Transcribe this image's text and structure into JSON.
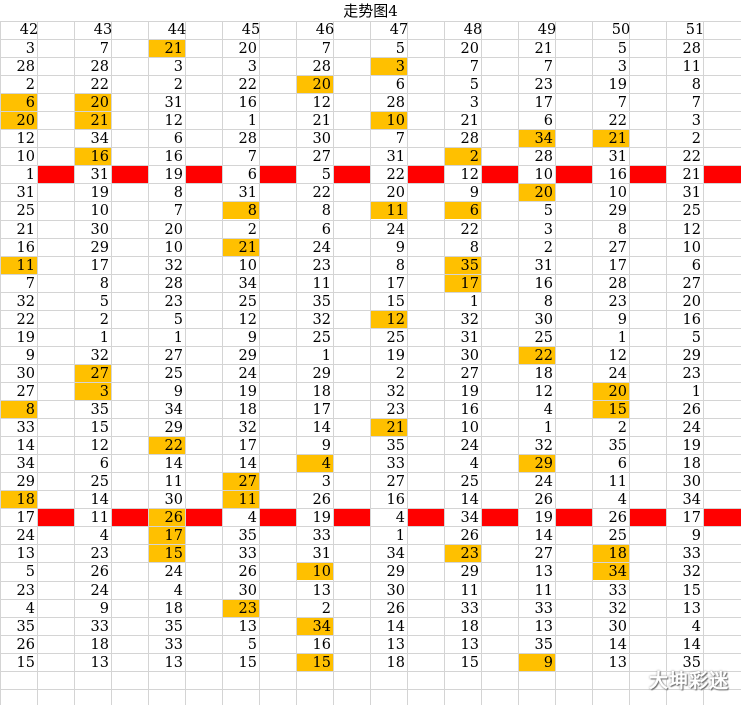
{
  "title": "走势图4",
  "columns": [
    "42",
    "43",
    "44",
    "45",
    "46",
    "47",
    "48",
    "49",
    "50",
    "51"
  ],
  "rows": [
    [
      "3",
      "7",
      "21",
      "20",
      "7",
      "5",
      "20",
      "21",
      "5",
      "28"
    ],
    [
      "28",
      "28",
      "3",
      "3",
      "28",
      "3",
      "7",
      "7",
      "3",
      "11"
    ],
    [
      "2",
      "22",
      "2",
      "22",
      "20",
      "6",
      "5",
      "23",
      "19",
      "8"
    ],
    [
      "6",
      "20",
      "31",
      "16",
      "12",
      "28",
      "3",
      "17",
      "7",
      "7"
    ],
    [
      "20",
      "21",
      "12",
      "1",
      "21",
      "10",
      "21",
      "6",
      "22",
      "3"
    ],
    [
      "12",
      "34",
      "6",
      "28",
      "30",
      "7",
      "28",
      "34",
      "21",
      "2"
    ],
    [
      "10",
      "16",
      "16",
      "7",
      "27",
      "31",
      "2",
      "28",
      "31",
      "22"
    ],
    [
      "1",
      "31",
      "19",
      "6",
      "5",
      "22",
      "12",
      "10",
      "16",
      "21"
    ],
    [
      "31",
      "19",
      "8",
      "31",
      "22",
      "20",
      "9",
      "20",
      "10",
      "31"
    ],
    [
      "25",
      "10",
      "7",
      "8",
      "8",
      "11",
      "6",
      "5",
      "29",
      "25"
    ],
    [
      "21",
      "30",
      "20",
      "2",
      "6",
      "24",
      "22",
      "3",
      "8",
      "12"
    ],
    [
      "16",
      "29",
      "10",
      "21",
      "24",
      "9",
      "8",
      "2",
      "27",
      "10"
    ],
    [
      "11",
      "17",
      "32",
      "10",
      "23",
      "8",
      "35",
      "31",
      "17",
      "6"
    ],
    [
      "7",
      "8",
      "28",
      "34",
      "11",
      "17",
      "17",
      "16",
      "28",
      "27"
    ],
    [
      "32",
      "5",
      "23",
      "25",
      "35",
      "15",
      "1",
      "8",
      "23",
      "20"
    ],
    [
      "22",
      "2",
      "5",
      "12",
      "32",
      "12",
      "32",
      "30",
      "9",
      "16"
    ],
    [
      "19",
      "1",
      "1",
      "9",
      "25",
      "25",
      "31",
      "25",
      "1",
      "5"
    ],
    [
      "9",
      "32",
      "27",
      "29",
      "1",
      "19",
      "30",
      "22",
      "12",
      "29"
    ],
    [
      "30",
      "27",
      "25",
      "24",
      "29",
      "2",
      "27",
      "18",
      "24",
      "23"
    ],
    [
      "27",
      "3",
      "9",
      "19",
      "18",
      "32",
      "19",
      "12",
      "20",
      "1"
    ],
    [
      "8",
      "35",
      "34",
      "18",
      "17",
      "23",
      "16",
      "4",
      "15",
      "26"
    ],
    [
      "33",
      "15",
      "29",
      "32",
      "14",
      "21",
      "10",
      "1",
      "2",
      "24"
    ],
    [
      "14",
      "12",
      "22",
      "17",
      "9",
      "35",
      "24",
      "32",
      "35",
      "19"
    ],
    [
      "34",
      "6",
      "14",
      "14",
      "4",
      "33",
      "4",
      "29",
      "6",
      "18"
    ],
    [
      "29",
      "25",
      "11",
      "27",
      "3",
      "27",
      "25",
      "24",
      "11",
      "30"
    ],
    [
      "18",
      "14",
      "30",
      "11",
      "26",
      "16",
      "14",
      "26",
      "4",
      "34"
    ],
    [
      "17",
      "11",
      "26",
      "4",
      "19",
      "4",
      "34",
      "19",
      "26",
      "17"
    ],
    [
      "24",
      "4",
      "17",
      "35",
      "33",
      "1",
      "26",
      "14",
      "25",
      "9"
    ],
    [
      "13",
      "23",
      "15",
      "33",
      "31",
      "34",
      "23",
      "27",
      "18",
      "33"
    ],
    [
      "5",
      "26",
      "24",
      "26",
      "10",
      "29",
      "29",
      "13",
      "34",
      "32"
    ],
    [
      "23",
      "24",
      "4",
      "30",
      "13",
      "30",
      "11",
      "11",
      "33",
      "15"
    ],
    [
      "4",
      "9",
      "18",
      "23",
      "2",
      "26",
      "33",
      "33",
      "32",
      "13"
    ],
    [
      "35",
      "33",
      "35",
      "13",
      "34",
      "14",
      "18",
      "13",
      "30",
      "4"
    ],
    [
      "26",
      "18",
      "33",
      "5",
      "16",
      "13",
      "13",
      "35",
      "14",
      "14"
    ],
    [
      "15",
      "13",
      "13",
      "15",
      "15",
      "18",
      "15",
      "9",
      "13",
      "35"
    ]
  ],
  "highlights": [
    [
      0,
      2
    ],
    [
      1,
      5
    ],
    [
      2,
      4
    ],
    [
      3,
      0
    ],
    [
      3,
      1
    ],
    [
      4,
      0
    ],
    [
      4,
      1
    ],
    [
      4,
      5
    ],
    [
      5,
      7
    ],
    [
      5,
      8
    ],
    [
      6,
      1
    ],
    [
      6,
      6
    ],
    [
      8,
      7
    ],
    [
      9,
      3
    ],
    [
      9,
      5
    ],
    [
      9,
      6
    ],
    [
      11,
      3
    ],
    [
      12,
      0
    ],
    [
      12,
      6
    ],
    [
      13,
      6
    ],
    [
      15,
      5
    ],
    [
      17,
      7
    ],
    [
      18,
      1
    ],
    [
      19,
      1
    ],
    [
      19,
      8
    ],
    [
      20,
      0
    ],
    [
      20,
      8
    ],
    [
      21,
      5
    ],
    [
      22,
      2
    ],
    [
      23,
      4
    ],
    [
      23,
      7
    ],
    [
      24,
      3
    ],
    [
      25,
      0
    ],
    [
      25,
      3
    ],
    [
      26,
      2
    ],
    [
      27,
      2
    ],
    [
      28,
      2
    ],
    [
      28,
      6
    ],
    [
      28,
      8
    ],
    [
      29,
      4
    ],
    [
      29,
      8
    ],
    [
      31,
      3
    ],
    [
      32,
      4
    ],
    [
      34,
      4
    ],
    [
      34,
      7
    ]
  ],
  "red_rows": [
    7,
    26
  ],
  "colors": {
    "highlight": "#ffc000",
    "red_bar": "#ff0000",
    "grid": "#d4d4d4"
  },
  "watermark": "大坤彩迷"
}
